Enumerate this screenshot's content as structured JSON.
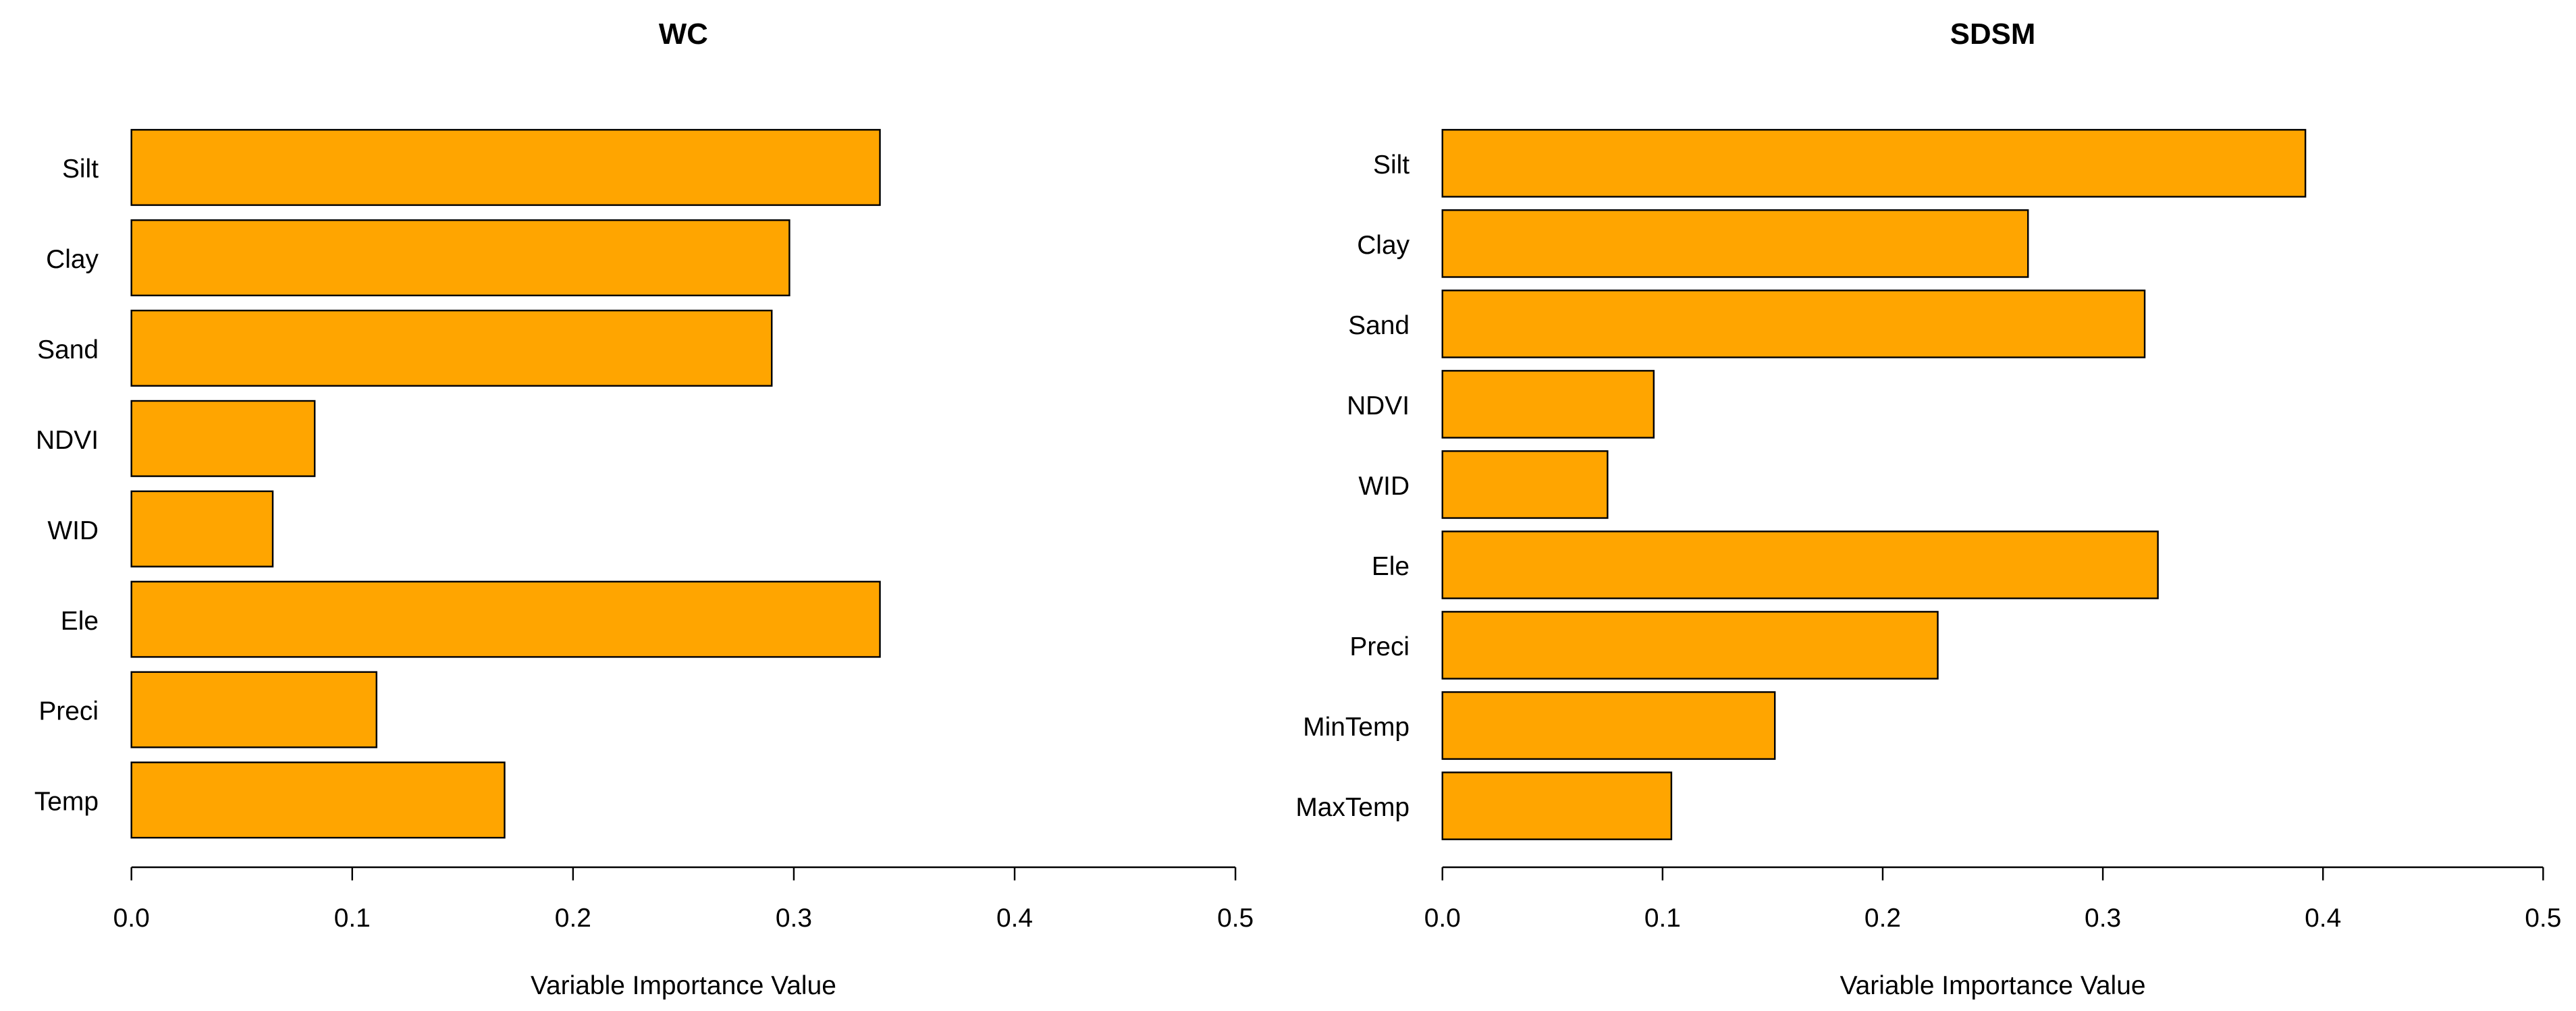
{
  "chart_data": [
    {
      "type": "bar",
      "orientation": "horizontal",
      "title": "WC",
      "x_label": "Variable Importance Value",
      "categories": [
        "Silt",
        "Clay",
        "Sand",
        "NDVI",
        "WID",
        "Ele",
        "Preci",
        "Temp"
      ],
      "values": [
        0.339,
        0.298,
        0.29,
        0.083,
        0.064,
        0.339,
        0.111,
        0.169
      ],
      "color": "#FFA500",
      "xlim": [
        0,
        0.5
      ],
      "xticks": [
        {
          "value": 0,
          "label": "0.0"
        },
        0.1,
        0.2,
        0.3,
        0.4,
        0.5
      ]
    },
    {
      "type": "bar",
      "orientation": "horizontal",
      "title": "SDSM",
      "x_label": "Variable Importance Value",
      "categories": [
        "Silt",
        "Clay",
        "Sand",
        "NDVI",
        "WID",
        "Ele",
        "Preci",
        "MinTemp",
        "MaxTemp"
      ],
      "values": [
        0.392,
        0.266,
        0.319,
        0.096,
        0.075,
        0.325,
        0.225,
        0.151,
        0.104
      ],
      "color": "#FFA500",
      "xlim": [
        0,
        0.5
      ],
      "xticks": [
        {
          "value": 0,
          "label": "0.0"
        },
        0.1,
        0.2,
        0.3,
        0.4,
        0.5
      ]
    }
  ]
}
